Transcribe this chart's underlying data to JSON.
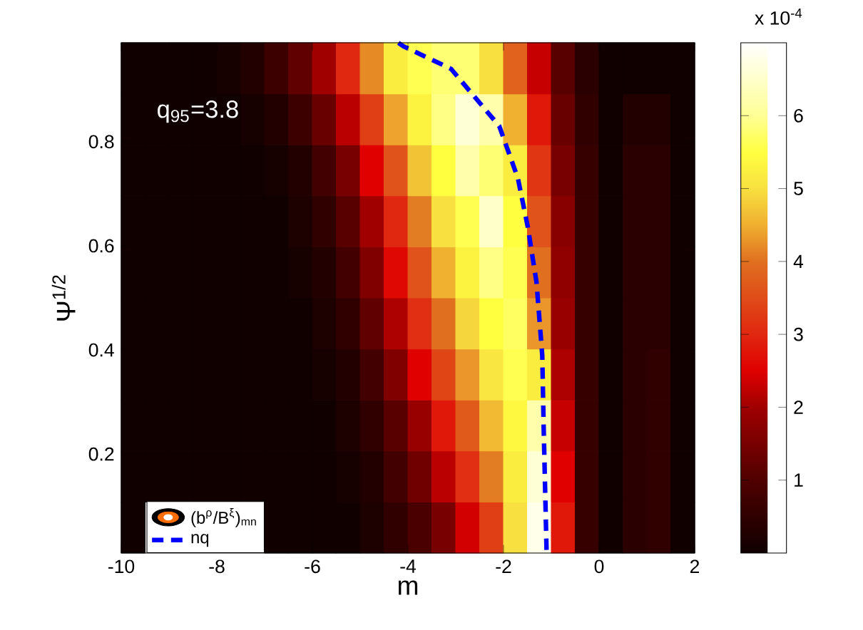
{
  "chart_data": {
    "type": "heatmap",
    "xlabel": "m",
    "ylabel": "Ψ$^{1/2}$",
    "xlim": [
      -10,
      2
    ],
    "ylim": [
      0.01,
      0.99
    ],
    "xticks": [
      -10,
      -8,
      -6,
      -4,
      -2,
      0,
      2
    ],
    "yticks": [
      0.2,
      0.4,
      0.6,
      0.8
    ],
    "clim": [
      0,
      7
    ],
    "cticks": [
      1,
      2,
      3,
      4,
      5,
      6
    ],
    "clabel": "x 10$^{-4}$",
    "legend": "bottom left",
    "annotations": [
      "q$_{95}$=3.8",
      "(b$^{ρ}$/B$^{ξ}$)$_{mn}$"
    ],
    "x": [
      -9.75,
      -9.25,
      -8.75,
      -8.25,
      -7.75,
      -7.25,
      -6.75,
      -6.25,
      -5.75,
      -5.25,
      -4.75,
      -4.25,
      -3.75,
      -3.25,
      -2.75,
      -2.25,
      -1.75,
      -1.25,
      -0.75,
      -0.25,
      0.25,
      0.75,
      1.25,
      1.75
    ],
    "cells": [
      [
        0,
        0,
        0,
        0,
        0.1,
        0.3,
        0.7,
        1.2,
        2,
        3,
        4.2,
        5.2,
        5.6,
        5.8,
        5.8,
        5,
        3.8,
        2.3,
        1.1,
        0.4,
        0,
        0,
        0,
        0
      ],
      [
        0,
        0,
        0,
        0,
        0,
        0.1,
        0.3,
        0.7,
        1.3,
        2.2,
        3.3,
        4.4,
        5.3,
        5.9,
        6.6,
        6.2,
        4.5,
        2.8,
        1.3,
        0.5,
        0,
        0.3,
        0.3,
        0
      ],
      [
        0,
        0,
        0,
        0,
        0,
        0,
        0.1,
        0.3,
        0.8,
        1.5,
        2.5,
        3.6,
        4.7,
        5.5,
        6.2,
        5.8,
        5.2,
        3.2,
        1.5,
        0.6,
        0,
        0.4,
        0.4,
        0
      ],
      [
        0,
        0,
        0,
        0,
        0,
        0,
        0,
        0.2,
        0.5,
        1.1,
        2,
        3,
        4.1,
        5,
        5.6,
        6.5,
        5.5,
        3.6,
        1.7,
        0.6,
        0,
        0.4,
        0.4,
        0
      ],
      [
        0,
        0,
        0,
        0,
        0,
        0,
        0,
        0.1,
        0.3,
        0.8,
        1.6,
        2.6,
        3.6,
        4.5,
        5.3,
        5.9,
        5.6,
        4,
        1.8,
        0.6,
        0,
        0.4,
        0.4,
        0
      ],
      [
        0,
        0,
        0,
        0,
        0,
        0,
        0,
        0,
        0.2,
        0.5,
        1.2,
        2.1,
        3.1,
        4,
        4.9,
        5.5,
        5.7,
        4.3,
        1.9,
        0.6,
        0,
        0.4,
        0.4,
        0
      ],
      [
        0,
        0,
        0,
        0,
        0,
        0,
        0,
        0,
        0.1,
        0.3,
        0.8,
        1.6,
        2.5,
        3.4,
        4.3,
        5.1,
        5.6,
        5.2,
        2.1,
        0.6,
        0,
        0.4,
        0.5,
        0
      ],
      [
        0,
        0,
        0,
        0,
        0,
        0,
        0,
        0,
        0,
        0.2,
        0.5,
        1.1,
        1.9,
        2.8,
        3.7,
        4.6,
        5.4,
        6.2,
        2.3,
        0.6,
        0,
        0.4,
        0.5,
        0
      ],
      [
        0,
        0,
        0,
        0,
        0,
        0,
        0,
        0,
        0,
        0.1,
        0.3,
        0.8,
        1.4,
        2.2,
        3.1,
        4.1,
        5.2,
        6.6,
        2.5,
        0.6,
        0,
        0.4,
        0.5,
        0
      ],
      [
        0,
        null,
        null,
        null,
        null,
        null,
        0,
        0,
        0,
        0,
        0.2,
        0.5,
        0.9,
        1.5,
        2.4,
        3.3,
        5,
        6.8,
        2.8,
        0.6,
        0,
        0.4,
        0.5,
        0
      ]
    ],
    "series": [
      {
        "type": "line",
        "name": "nq",
        "color": "#0000ff",
        "line_style": "dashed",
        "x": [
          -4.2,
          -4.09,
          -3.1,
          -2.09,
          -1.7,
          -1.49,
          -1.31,
          -1.19,
          -1.16,
          -1.1
        ],
        "values": [
          0.99,
          0.983,
          0.94,
          0.83,
          0.73,
          0.635,
          0.53,
          0.39,
          0.25,
          0.016
        ]
      }
    ]
  }
}
